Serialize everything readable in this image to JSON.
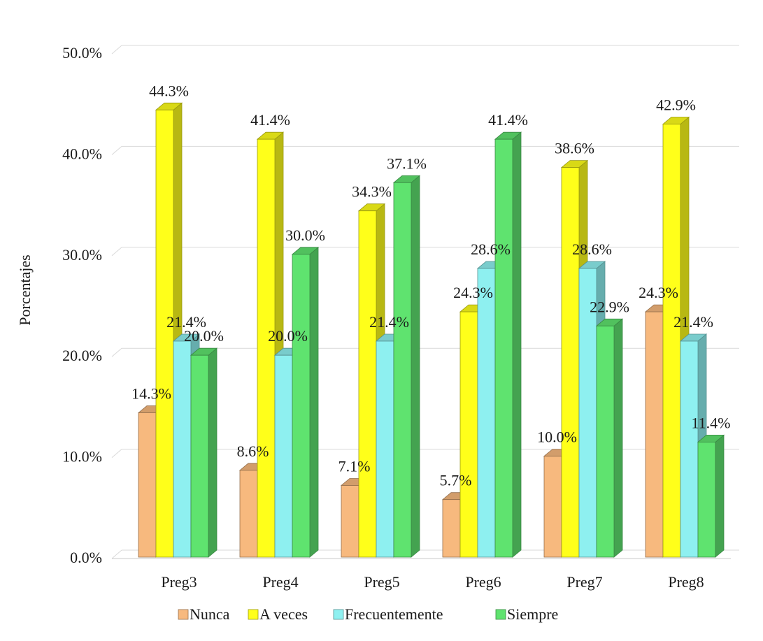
{
  "chart_data": {
    "type": "bar",
    "ylabel": "Porcentajes",
    "xlabel": "",
    "ylim": [
      0,
      50
    ],
    "yticks": [
      "0.0%",
      "10.0%",
      "20.0%",
      "30.0%",
      "40.0%",
      "50.0%"
    ],
    "ytick_values": [
      0,
      10,
      20,
      30,
      40,
      50
    ],
    "grid": true,
    "legend_position": "bottom",
    "categories": [
      "Preg3",
      "Preg4",
      "Preg5",
      "Preg6",
      "Preg7",
      "Preg8"
    ],
    "series": [
      {
        "name": "Nunca",
        "color": "#f7b97e",
        "values": [
          14.3,
          8.6,
          7.1,
          5.7,
          10.0,
          24.3
        ],
        "labels": [
          "14.3%",
          "8.6%",
          "7.1%",
          "5.7%",
          "10.0%",
          "24.3%"
        ]
      },
      {
        "name": "A veces",
        "color": "#ffff1a",
        "values": [
          44.3,
          41.4,
          34.3,
          24.3,
          38.6,
          42.9
        ],
        "labels": [
          "44.3%",
          "41.4%",
          "34.3%",
          "24.3%",
          "38.6%",
          "42.9%"
        ]
      },
      {
        "name": "Frecuentemente",
        "color": "#8ef0f0",
        "values": [
          21.4,
          20.0,
          21.4,
          28.6,
          28.6,
          21.4
        ],
        "labels": [
          "21.4%",
          "20.0%",
          "21.4%",
          "28.6%",
          "28.6%",
          "21.4%"
        ]
      },
      {
        "name": "Siempre",
        "color": "#5fe36f",
        "values": [
          20.0,
          30.0,
          37.1,
          41.4,
          22.9,
          11.4
        ],
        "labels": [
          "20.0%",
          "30.0%",
          "37.1%",
          "41.4%",
          "22.9%",
          "11.4%"
        ]
      }
    ]
  }
}
